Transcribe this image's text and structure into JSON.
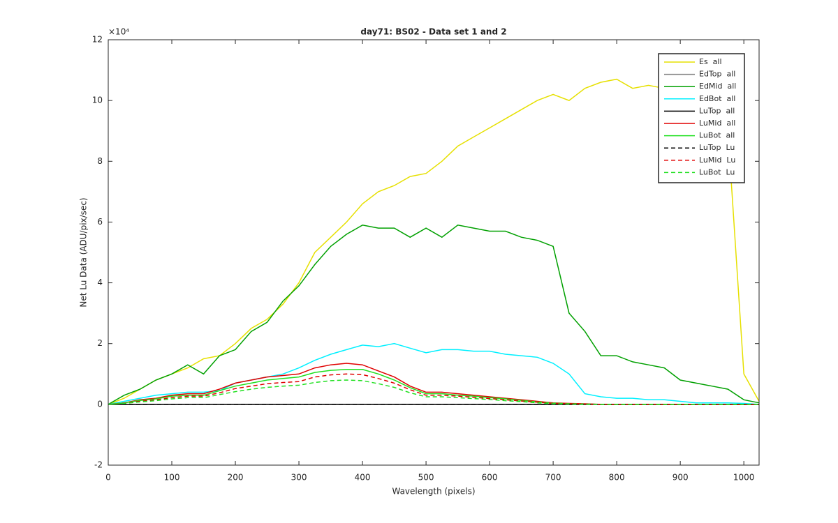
{
  "chart_data": {
    "type": "line",
    "title": "day71: BS02 - Data set 1 and 2",
    "xlabel": "Wavelength (pixels)",
    "ylabel": "Net Lu Data (ADU/pix/sec)",
    "y_exponent_label": "×10⁴",
    "xlim": [
      0,
      1024
    ],
    "ylim": [
      -2,
      12
    ],
    "xticks": [
      0,
      100,
      200,
      300,
      400,
      500,
      600,
      700,
      800,
      900,
      1000
    ],
    "yticks": [
      -2,
      0,
      2,
      4,
      6,
      8,
      10,
      12
    ],
    "legend": "northeast",
    "x": [
      0,
      25,
      50,
      75,
      100,
      125,
      150,
      175,
      200,
      225,
      250,
      275,
      300,
      325,
      350,
      375,
      400,
      425,
      450,
      475,
      500,
      525,
      550,
      575,
      600,
      625,
      650,
      675,
      700,
      725,
      750,
      775,
      800,
      825,
      850,
      875,
      900,
      925,
      950,
      975,
      1000,
      1024
    ],
    "series": [
      {
        "name": "Es  all",
        "color": "#e6e000",
        "dashed": false,
        "values": [
          0,
          0.2,
          0.5,
          0.8,
          1.0,
          1.2,
          1.5,
          1.6,
          2.0,
          2.5,
          2.8,
          3.3,
          4.0,
          5.0,
          5.5,
          6.0,
          6.6,
          7.0,
          7.2,
          7.5,
          7.6,
          8.0,
          8.5,
          8.8,
          9.1,
          9.4,
          9.7,
          10.0,
          10.2,
          10.0,
          10.4,
          10.6,
          10.7,
          10.4,
          10.5,
          10.4,
          10.3,
          10.4,
          10.6,
          9.0,
          1.0,
          0.1
        ]
      },
      {
        "name": "EdTop  all",
        "color": "#808080",
        "dashed": false,
        "values": [
          0,
          0,
          0,
          0,
          0,
          0,
          0,
          0,
          0,
          0,
          0,
          0,
          0,
          0,
          0,
          0,
          0,
          0,
          0,
          0,
          0,
          0,
          0,
          0,
          0,
          0,
          0,
          0,
          0,
          0,
          0,
          0,
          0,
          0,
          0,
          0,
          0,
          0,
          0,
          0,
          0,
          0
        ]
      },
      {
        "name": "EdMid  all",
        "color": "#00a000",
        "dashed": false,
        "values": [
          0,
          0.3,
          0.5,
          0.8,
          1.0,
          1.3,
          1.0,
          1.6,
          1.8,
          2.4,
          2.7,
          3.4,
          3.9,
          4.6,
          5.2,
          5.6,
          5.9,
          5.8,
          5.8,
          5.5,
          5.8,
          5.5,
          5.9,
          5.8,
          5.7,
          5.7,
          5.5,
          5.4,
          5.2,
          3.0,
          2.4,
          1.6,
          1.6,
          1.4,
          1.3,
          1.2,
          0.8,
          0.7,
          0.6,
          0.5,
          0.15,
          0.05
        ]
      },
      {
        "name": "EdBot  all",
        "color": "#00f0ff",
        "dashed": false,
        "values": [
          0,
          0.1,
          0.2,
          0.3,
          0.35,
          0.4,
          0.4,
          0.45,
          0.7,
          0.8,
          0.9,
          1.0,
          1.2,
          1.45,
          1.65,
          1.8,
          1.95,
          1.9,
          2.0,
          1.85,
          1.7,
          1.8,
          1.8,
          1.75,
          1.75,
          1.65,
          1.6,
          1.55,
          1.35,
          1.0,
          0.35,
          0.25,
          0.2,
          0.2,
          0.15,
          0.15,
          0.1,
          0.05,
          0.05,
          0.05,
          0.03,
          0
        ]
      },
      {
        "name": "LuTop  all",
        "color": "#000000",
        "dashed": false,
        "values": [
          0,
          0,
          0,
          0,
          0,
          0,
          0,
          0,
          0,
          0,
          0,
          0,
          0,
          0,
          0,
          0,
          0,
          0,
          0,
          0,
          0,
          0,
          0,
          0,
          0,
          0,
          0,
          0,
          0,
          0,
          0,
          0,
          0,
          0,
          0,
          0,
          0,
          0,
          0,
          0,
          0,
          0
        ]
      },
      {
        "name": "LuMid  all",
        "color": "#e00000",
        "dashed": false,
        "values": [
          0,
          0.05,
          0.15,
          0.2,
          0.3,
          0.35,
          0.35,
          0.5,
          0.7,
          0.8,
          0.9,
          0.95,
          1.0,
          1.2,
          1.3,
          1.35,
          1.3,
          1.1,
          0.9,
          0.6,
          0.4,
          0.4,
          0.35,
          0.3,
          0.25,
          0.2,
          0.15,
          0.1,
          0.05,
          0.03,
          0.02,
          0,
          0,
          0,
          0,
          0,
          0,
          0,
          0,
          0,
          0,
          0
        ]
      },
      {
        "name": "LuBot  all",
        "color": "#20e020",
        "dashed": false,
        "values": [
          0,
          0.05,
          0.13,
          0.18,
          0.27,
          0.3,
          0.3,
          0.45,
          0.6,
          0.7,
          0.8,
          0.85,
          0.9,
          1.05,
          1.12,
          1.15,
          1.15,
          1.0,
          0.8,
          0.55,
          0.35,
          0.35,
          0.3,
          0.27,
          0.22,
          0.18,
          0.13,
          0.08,
          0.04,
          0.02,
          0.01,
          0,
          0,
          0,
          0,
          0,
          0,
          0,
          0,
          0,
          0,
          0
        ]
      },
      {
        "name": "LuTop  Lu",
        "color": "#000000",
        "dashed": true,
        "values": [
          0,
          0,
          0,
          0,
          0,
          0,
          0,
          0,
          0,
          0,
          0,
          0,
          0,
          0,
          0,
          0,
          0,
          0,
          0,
          0,
          0,
          0,
          0,
          0,
          0,
          0,
          0,
          0,
          0,
          0,
          0,
          0,
          0,
          0,
          0,
          0,
          0,
          0,
          0,
          0,
          0,
          0
        ]
      },
      {
        "name": "LuMid  Lu",
        "color": "#e00000",
        "dashed": true,
        "values": [
          0,
          0.04,
          0.1,
          0.15,
          0.22,
          0.27,
          0.27,
          0.38,
          0.52,
          0.6,
          0.68,
          0.72,
          0.75,
          0.9,
          0.97,
          1.0,
          0.98,
          0.85,
          0.7,
          0.48,
          0.3,
          0.3,
          0.27,
          0.23,
          0.19,
          0.15,
          0.11,
          0.07,
          0.03,
          0.02,
          0.01,
          0,
          0,
          0,
          0,
          0,
          0,
          0,
          0,
          0,
          0,
          0
        ]
      },
      {
        "name": "LuBot  Lu",
        "color": "#20e020",
        "dashed": true,
        "values": [
          0,
          0.03,
          0.08,
          0.12,
          0.18,
          0.22,
          0.22,
          0.32,
          0.42,
          0.5,
          0.56,
          0.6,
          0.63,
          0.72,
          0.78,
          0.8,
          0.78,
          0.68,
          0.56,
          0.38,
          0.25,
          0.25,
          0.22,
          0.19,
          0.16,
          0.12,
          0.09,
          0.05,
          0.02,
          0.01,
          0,
          0,
          0,
          0,
          0,
          0,
          0,
          0,
          0,
          0,
          0,
          0
        ]
      }
    ]
  }
}
